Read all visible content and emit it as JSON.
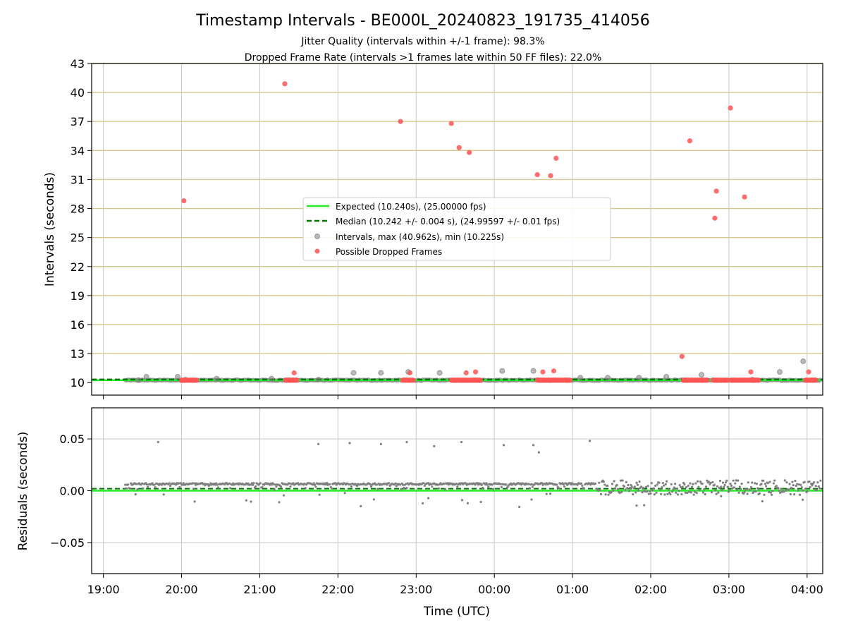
{
  "chart_data": {
    "type": "scatter",
    "title": "Timestamp Intervals - BE000L_20240823_191735_414056",
    "subtitle_lines": [
      "Jitter Quality (intervals within +/-1 frame): 98.3%",
      "Dropped Frame Rate (intervals >1 frames late within 50 FF files): 22.0%"
    ],
    "xlabel": "Time (UTC)",
    "x_unit": "hours since 19:00 UTC",
    "x_ticks": [
      {
        "value": 0,
        "label": "19:00"
      },
      {
        "value": 1,
        "label": "20:00"
      },
      {
        "value": 2,
        "label": "21:00"
      },
      {
        "value": 3,
        "label": "22:00"
      },
      {
        "value": 4,
        "label": "23:00"
      },
      {
        "value": 5,
        "label": "00:00"
      },
      {
        "value": 6,
        "label": "01:00"
      },
      {
        "value": 7,
        "label": "02:00"
      },
      {
        "value": 8,
        "label": "03:00"
      },
      {
        "value": 9,
        "label": "04:00"
      }
    ],
    "xlim": [
      -0.15,
      9.2
    ],
    "top": {
      "ylabel": "Intervals (seconds)",
      "ylim": [
        8.7,
        43
      ],
      "yticks": [
        10,
        13,
        16,
        19,
        22,
        25,
        28,
        31,
        34,
        37,
        40,
        43
      ],
      "gold_gridlines": [
        13,
        16,
        19,
        22,
        25,
        28,
        31,
        34,
        37,
        40,
        43
      ],
      "expected": 10.24,
      "median": 10.242,
      "legend": [
        "Expected (10.240s), (25.00000 fps)",
        "Median (10.242 +/- 0.004 s), (24.99597 +/- 0.01 fps)",
        "Intervals, max (40.962s), min (10.225s)",
        "Possible Dropped Frames"
      ],
      "gray_points": [
        [
          0.45,
          10.25
        ],
        [
          0.55,
          10.6
        ],
        [
          0.95,
          10.6
        ],
        [
          1.05,
          10.3
        ],
        [
          1.45,
          10.4
        ],
        [
          2.15,
          10.4
        ],
        [
          2.75,
          10.3
        ],
        [
          3.2,
          11.0
        ],
        [
          3.55,
          11.0
        ],
        [
          3.9,
          11.1
        ],
        [
          4.3,
          11.0
        ],
        [
          5.1,
          11.2
        ],
        [
          5.5,
          11.2
        ],
        [
          6.1,
          10.5
        ],
        [
          6.45,
          10.5
        ],
        [
          6.85,
          10.5
        ],
        [
          7.2,
          10.6
        ],
        [
          7.65,
          10.8
        ],
        [
          8.3,
          10.3
        ],
        [
          8.65,
          11.1
        ],
        [
          8.95,
          12.2
        ]
      ],
      "red_points": [
        [
          1.03,
          28.8
        ],
        [
          2.32,
          40.9
        ],
        [
          2.44,
          11.0
        ],
        [
          3.8,
          37.0
        ],
        [
          3.92,
          11.0
        ],
        [
          4.45,
          36.8
        ],
        [
          4.55,
          34.3
        ],
        [
          4.64,
          11.0
        ],
        [
          4.68,
          33.8
        ],
        [
          4.76,
          11.1
        ],
        [
          5.55,
          31.5
        ],
        [
          5.62,
          11.1
        ],
        [
          5.72,
          31.4
        ],
        [
          5.76,
          11.2
        ],
        [
          5.79,
          33.2
        ],
        [
          7.4,
          12.7
        ],
        [
          7.5,
          35.0
        ],
        [
          7.82,
          27.0
        ],
        [
          7.84,
          29.8
        ],
        [
          8.02,
          38.4
        ],
        [
          8.2,
          29.2
        ],
        [
          8.28,
          11.1
        ],
        [
          9.02,
          11.1
        ]
      ],
      "red_runs": [
        [
          1.0,
          1.2
        ],
        [
          2.33,
          2.48
        ],
        [
          3.83,
          3.97
        ],
        [
          4.45,
          4.83
        ],
        [
          5.55,
          5.97
        ],
        [
          7.42,
          7.73
        ],
        [
          7.8,
          7.98
        ],
        [
          8.03,
          8.38
        ],
        [
          8.98,
          9.12
        ]
      ]
    },
    "bottom": {
      "ylabel": "Residuals (seconds)",
      "ylim": [
        -0.08,
        0.08
      ],
      "yticks": [
        {
          "value": 0.05,
          "label": "0.05"
        },
        {
          "value": 0.0,
          "label": "0.00"
        },
        {
          "value": -0.05,
          "label": "−0.05"
        }
      ],
      "expected": 0.0,
      "median": 0.002,
      "outliers": [
        [
          0.7,
          0.047
        ],
        [
          2.75,
          0.045
        ],
        [
          3.15,
          0.046
        ],
        [
          3.55,
          0.045
        ],
        [
          3.88,
          0.047
        ],
        [
          4.23,
          0.043
        ],
        [
          4.58,
          0.047
        ],
        [
          5.12,
          0.044
        ],
        [
          5.5,
          0.044
        ],
        [
          5.57,
          0.037
        ],
        [
          6.22,
          0.048
        ]
      ]
    },
    "colors": {
      "expected": "#22ee22",
      "median": "#007700",
      "gray_points": "#808080",
      "red_points": "#ff5555",
      "gold_grid": "#d8c78c",
      "grid": "#c8c8c8"
    }
  }
}
